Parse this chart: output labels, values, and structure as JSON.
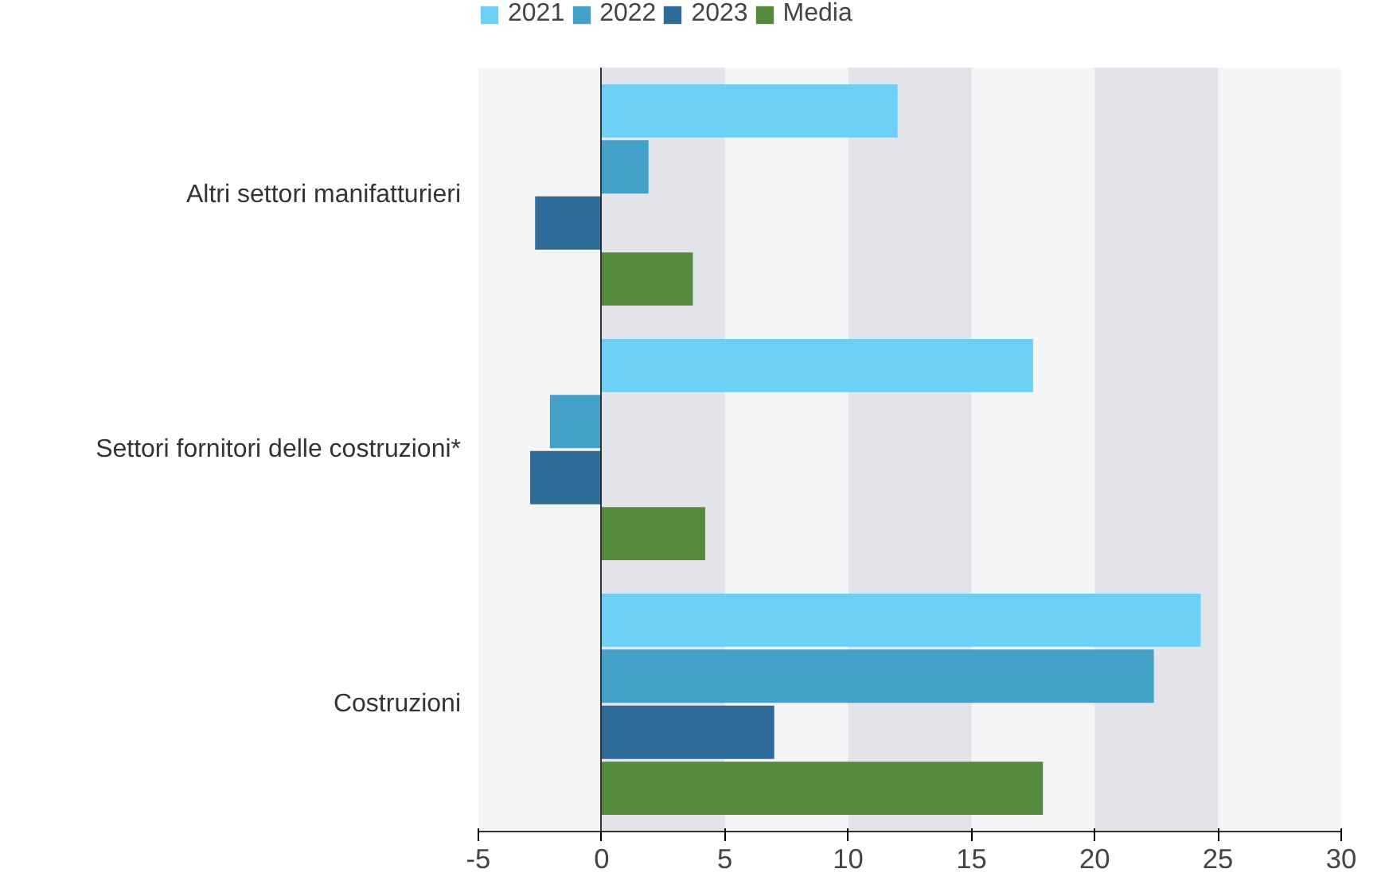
{
  "chart_data": {
    "type": "bar",
    "orientation": "horizontal",
    "categories": [
      "Altri settori manifatturieri",
      "Settori fornitori delle costruzioni*",
      "Costruzioni"
    ],
    "series": [
      {
        "name": "2021",
        "color": "#6dcff6",
        "values": [
          12.0,
          17.5,
          24.3
        ]
      },
      {
        "name": "2022",
        "color": "#43a0c8",
        "values": [
          1.9,
          -2.1,
          22.4
        ]
      },
      {
        "name": "2023",
        "color": "#2e6b99",
        "values": [
          -2.7,
          -2.9,
          7.0
        ]
      },
      {
        "name": "Media",
        "color": "#548a3d",
        "values": [
          3.7,
          4.2,
          17.9
        ]
      }
    ],
    "xlim": [
      -5,
      30
    ],
    "xticks": [
      -5,
      0,
      5,
      10,
      15,
      20,
      25,
      30
    ],
    "grid": "x",
    "legend": "top left"
  }
}
